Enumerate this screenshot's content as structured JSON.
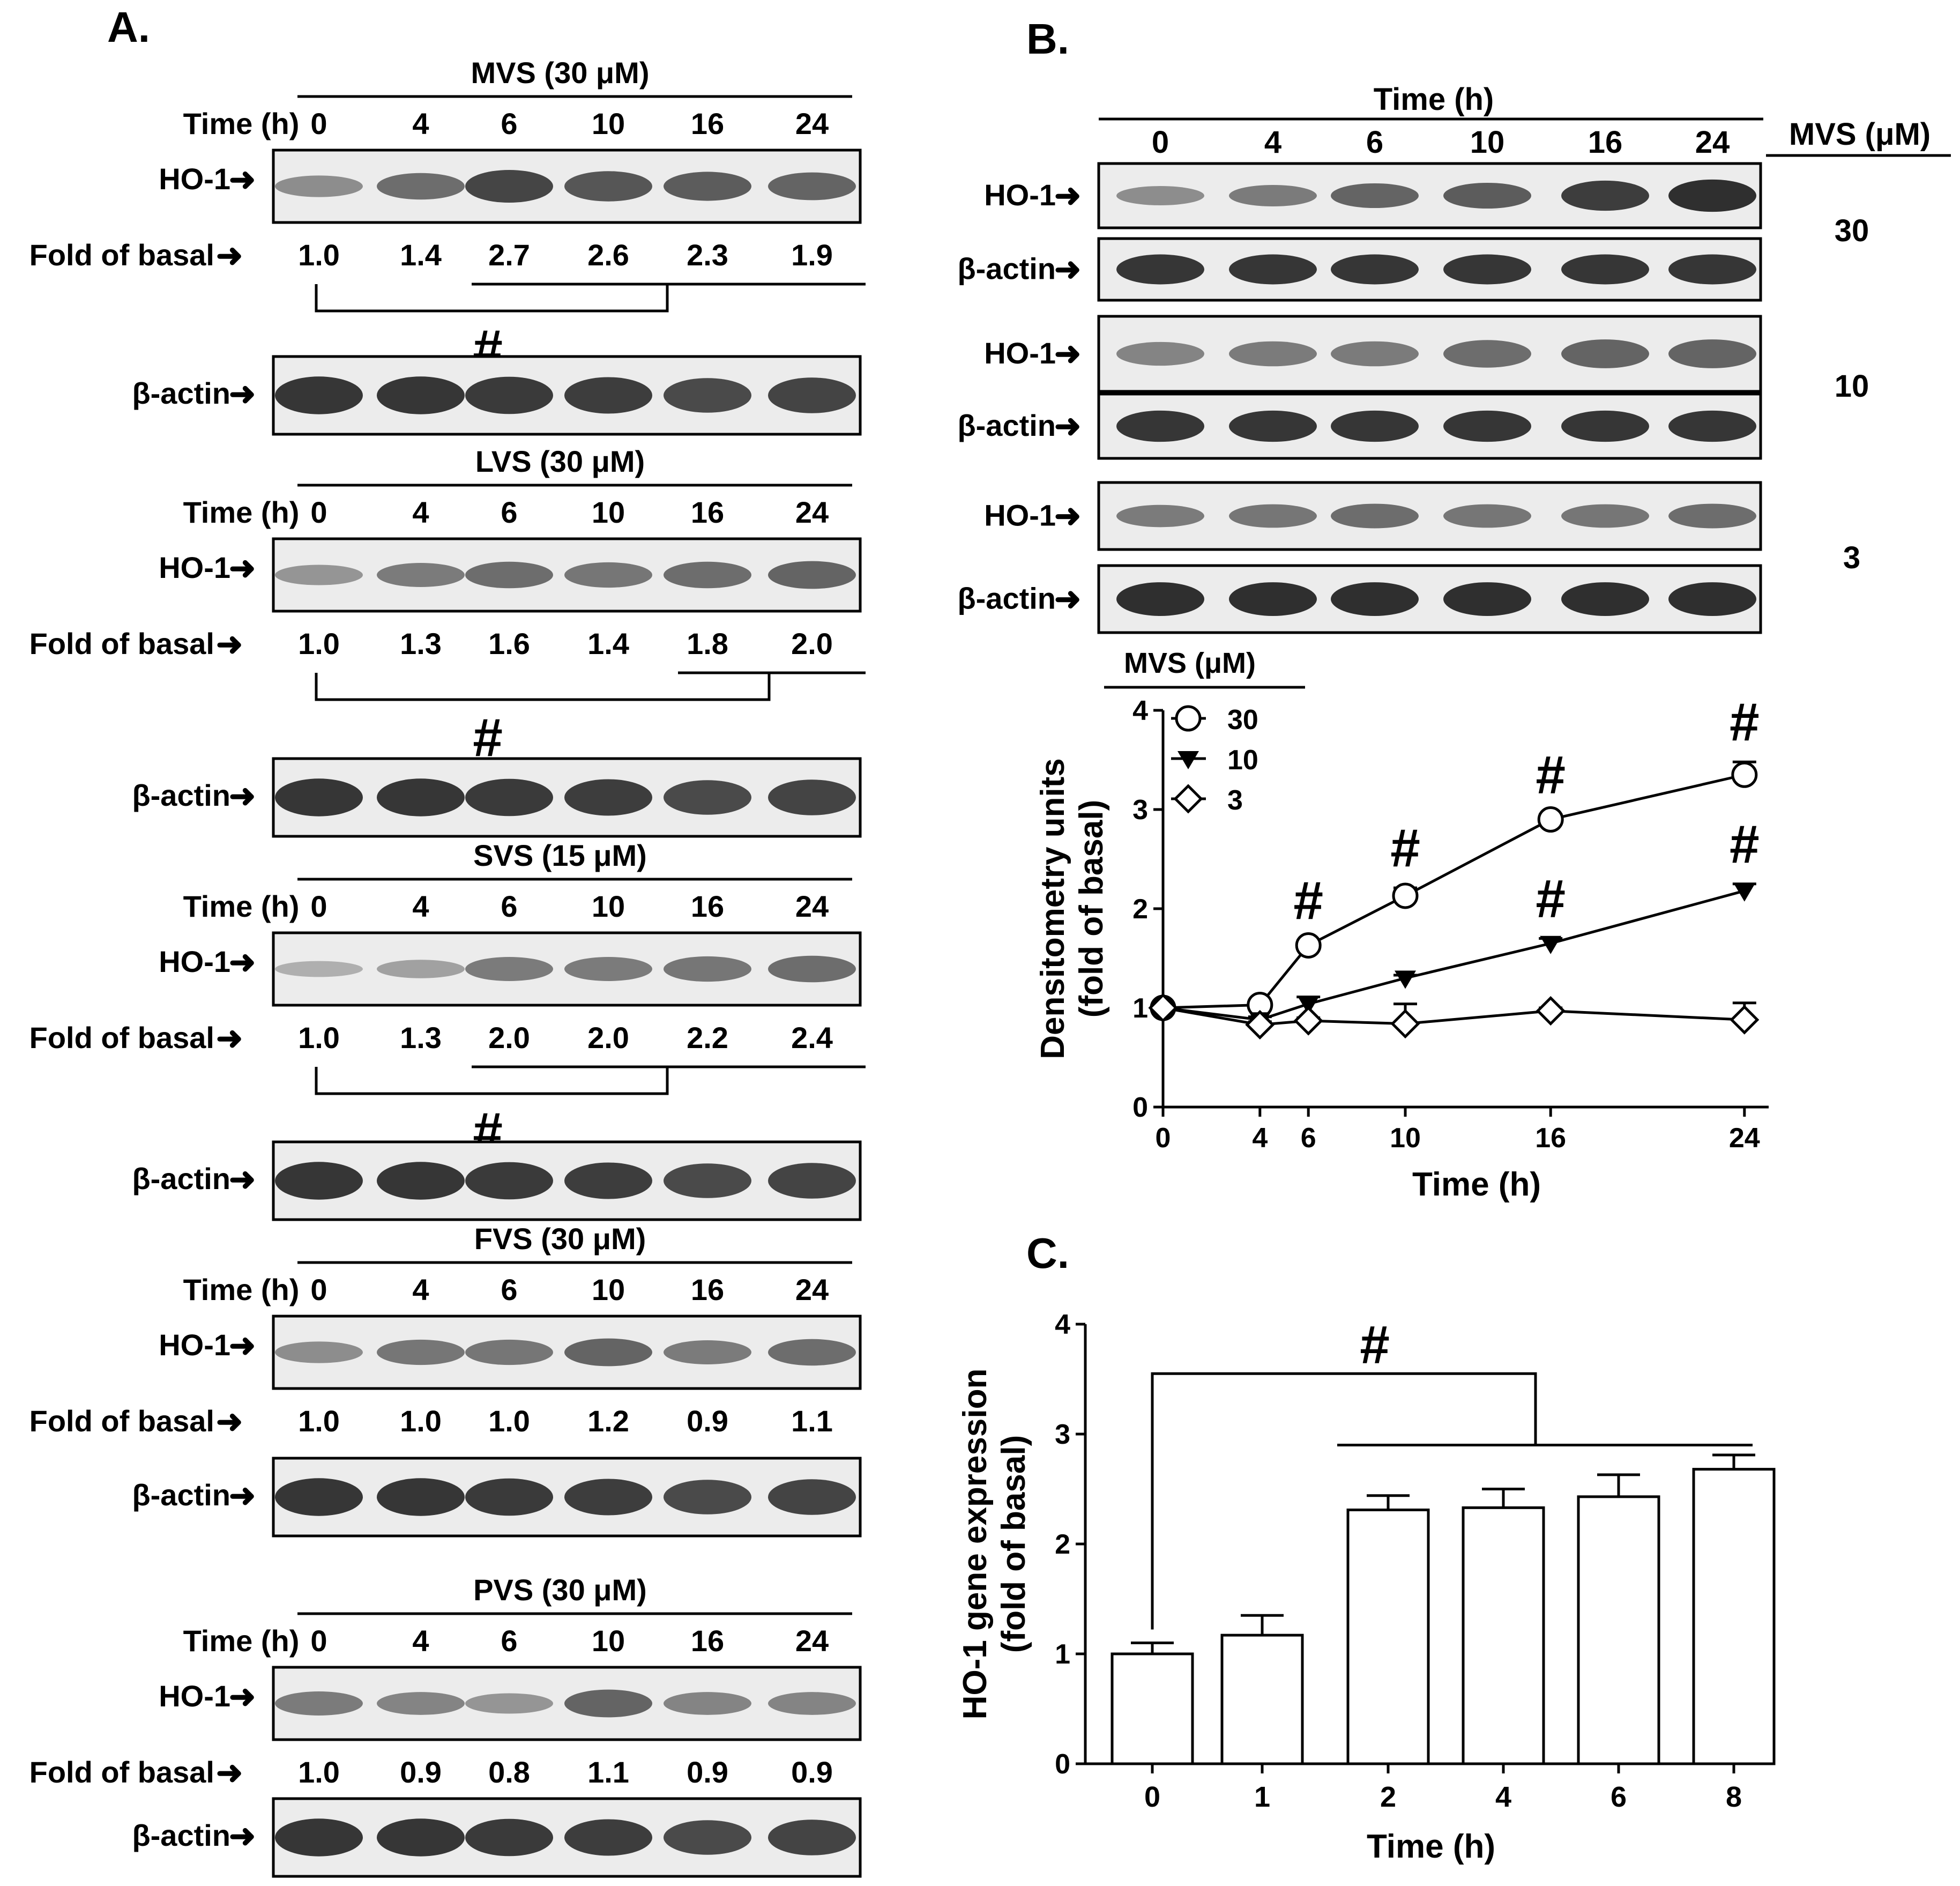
{
  "panel_labels": {
    "a": "A.",
    "b": "B.",
    "c": "C."
  },
  "blot_labels": {
    "time": "Time (h)",
    "ho1": "HO-1",
    "actin": "β-actin",
    "fold": "Fold of basal",
    "hash": "#",
    "arrow": "➜"
  },
  "panel_a": {
    "time_points": [
      "0",
      "4",
      "6",
      "10",
      "16",
      "24"
    ],
    "groups": [
      {
        "title": "MVS (30 μM)",
        "fold": [
          "1.0",
          "1.4",
          "2.7",
          "2.6",
          "2.3",
          "1.9"
        ],
        "significance": "#"
      },
      {
        "title": "LVS (30 μM)",
        "fold": [
          "1.0",
          "1.3",
          "1.6",
          "1.4",
          "1.8",
          "2.0"
        ],
        "significance": "#"
      },
      {
        "title": "SVS (15 μM)",
        "fold": [
          "1.0",
          "1.3",
          "2.0",
          "2.0",
          "2.2",
          "2.4"
        ],
        "significance": "#"
      },
      {
        "title": "FVS (30 μM)",
        "fold": [
          "1.0",
          "1.0",
          "1.0",
          "1.2",
          "0.9",
          "1.1"
        ],
        "significance": ""
      },
      {
        "title": "PVS (30 μM)",
        "fold": [
          "1.0",
          "0.9",
          "0.8",
          "1.1",
          "0.9",
          "0.9"
        ],
        "significance": ""
      }
    ]
  },
  "panel_b": {
    "time_header": "Time (h)",
    "time_points": [
      "0",
      "4",
      "6",
      "10",
      "16",
      "24"
    ],
    "dose_header": "MVS (μM)",
    "doses": [
      "30",
      "10",
      "3"
    ]
  },
  "chart_data": [
    {
      "type": "line",
      "legend_title": "MVS (μM)",
      "xlabel": "Time (h)",
      "ylabel": "Densitometry units\n(fold of basal)",
      "x": [
        0,
        4,
        6,
        10,
        16,
        24
      ],
      "x_ticks": [
        "0",
        "4",
        "6",
        "10",
        "16",
        "24"
      ],
      "ylim": [
        0,
        4
      ],
      "y_ticks": [
        "0",
        "1",
        "2",
        "3",
        "4"
      ],
      "legend_position": "top-left",
      "series": [
        {
          "name": "30",
          "marker": "open-circle",
          "values": [
            1.0,
            1.03,
            1.63,
            2.13,
            2.9,
            3.35
          ],
          "errors": [
            0.03,
            0.03,
            0.05,
            0.08,
            0.05,
            0.13
          ]
        },
        {
          "name": "10",
          "marker": "filled-triangle-down",
          "values": [
            1.0,
            0.88,
            1.04,
            1.3,
            1.65,
            2.18
          ],
          "errors": [
            0.03,
            0.03,
            0.07,
            0.03,
            0.05,
            0.07
          ]
        },
        {
          "name": "3",
          "marker": "open-diamond",
          "values": [
            1.0,
            0.83,
            0.87,
            0.84,
            0.97,
            0.88
          ],
          "errors": [
            0.03,
            0.03,
            0.03,
            0.2,
            0.03,
            0.17
          ]
        }
      ],
      "annotations": [
        {
          "text": "#",
          "x": 6,
          "series": "30"
        },
        {
          "text": "#",
          "x": 10,
          "series": "30"
        },
        {
          "text": "#",
          "x": 16,
          "series": "30"
        },
        {
          "text": "#",
          "x": 24,
          "series": "30"
        },
        {
          "text": "#",
          "x": 16,
          "series": "10"
        },
        {
          "text": "#",
          "x": 24,
          "series": "10"
        }
      ]
    },
    {
      "type": "bar",
      "xlabel": "Time (h)",
      "ylabel": "HO-1 gene expression\n(fold of basal)",
      "categories": [
        "0",
        "1",
        "2",
        "4",
        "6",
        "8"
      ],
      "values": [
        1.0,
        1.17,
        2.31,
        2.33,
        2.43,
        2.68
      ],
      "errors": [
        0.1,
        0.18,
        0.13,
        0.17,
        0.2,
        0.13
      ],
      "ylim": [
        0,
        4
      ],
      "y_ticks": [
        "0",
        "1",
        "2",
        "3",
        "4"
      ],
      "annotation": "#"
    }
  ]
}
